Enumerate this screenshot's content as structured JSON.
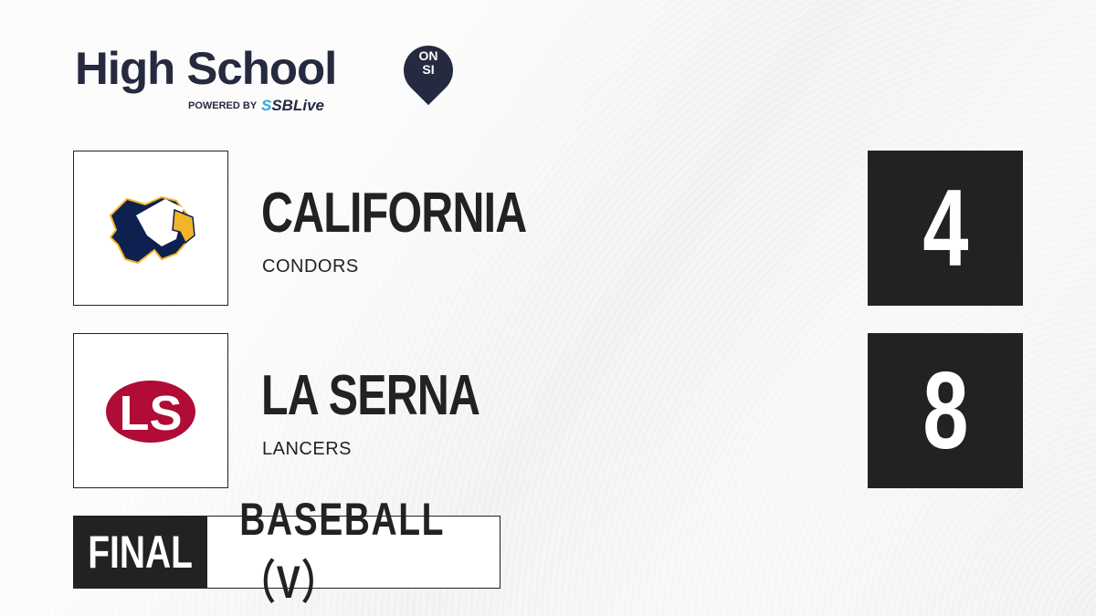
{
  "brand": {
    "title": "High School",
    "badge_top": "ON",
    "badge_bottom": "SI",
    "powered_by": "POWERED BY",
    "partner_prefix": "S",
    "partner": "SBLive"
  },
  "teams": [
    {
      "name": "CALIFORNIA",
      "mascot": "CONDORS",
      "score": "4",
      "logo": "condor-logo",
      "colors": {
        "primary": "#0d2050",
        "accent": "#f2b52a"
      }
    },
    {
      "name": "LA SERNA",
      "mascot": "LANCERS",
      "score": "8",
      "logo": "ls-logo",
      "logo_text": "LS",
      "colors": {
        "primary": "#b00c36"
      }
    }
  ],
  "status": {
    "label": "FINAL",
    "sport": "BASEBALL（V）"
  }
}
